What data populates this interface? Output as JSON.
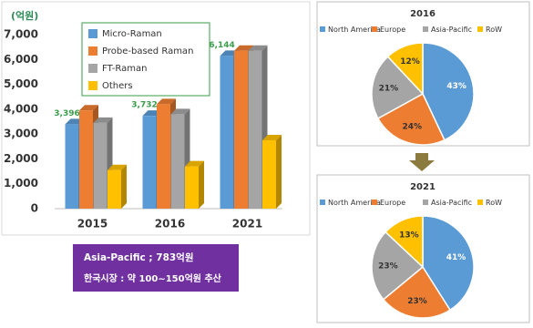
{
  "chart_data": [
    {
      "type": "bar",
      "y_label": "(억원)",
      "categories": [
        "2015",
        "2016",
        "2021"
      ],
      "series": [
        {
          "name": "Micro-Raman",
          "color": "#5b9bd5",
          "values": [
            3396,
            3732,
            6144
          ],
          "value_labels": [
            "3,396",
            "3,732",
            "6,144"
          ]
        },
        {
          "name": "Probe-based Raman",
          "color": "#ed7d31",
          "values": [
            3950,
            4200,
            6350
          ]
        },
        {
          "name": "FT-Raman",
          "color": "#a5a5a5",
          "values": [
            3450,
            3800,
            6350
          ]
        },
        {
          "name": "Others",
          "color": "#ffc000",
          "values": [
            1550,
            1700,
            2750
          ]
        }
      ],
      "ylim": [
        0,
        7000
      ],
      "yticks": [
        0,
        {
          "value": 1000,
          "label": "1,000"
        },
        {
          "value": 2000,
          "label": "2,000"
        },
        {
          "value": 3000,
          "label": "3,000"
        },
        {
          "value": 4000,
          "label": "4,000"
        },
        {
          "value": 5000,
          "label": "5,000"
        },
        {
          "value": 6000,
          "label": "6,000"
        },
        {
          "value": 7000,
          "label": "7,000"
        }
      ]
    },
    {
      "type": "pie",
      "title": "2016",
      "categories": [
        "North America",
        "Europe",
        "Asia-Pacific",
        "RoW"
      ],
      "colors": [
        "#5b9bd5",
        "#ed7d31",
        "#a5a5a5",
        "#ffc000"
      ],
      "values": [
        43,
        24,
        21,
        12
      ],
      "value_labels": [
        "43%",
        "24%",
        "21%",
        "12%"
      ]
    },
    {
      "type": "pie",
      "title": "2021",
      "categories": [
        "North America",
        "Europe",
        "Asia-Pacific",
        "RoW"
      ],
      "colors": [
        "#5b9bd5",
        "#ed7d31",
        "#a5a5a5",
        "#ffc000"
      ],
      "values": [
        41,
        23,
        23,
        13
      ],
      "value_labels": [
        "41%",
        "23%",
        "23%",
        "13%"
      ]
    }
  ],
  "annotation_box": {
    "lines": [
      "Asia-Pacific ; 783억원",
      "한국시장 : 약 100~150억원 추산"
    ]
  }
}
